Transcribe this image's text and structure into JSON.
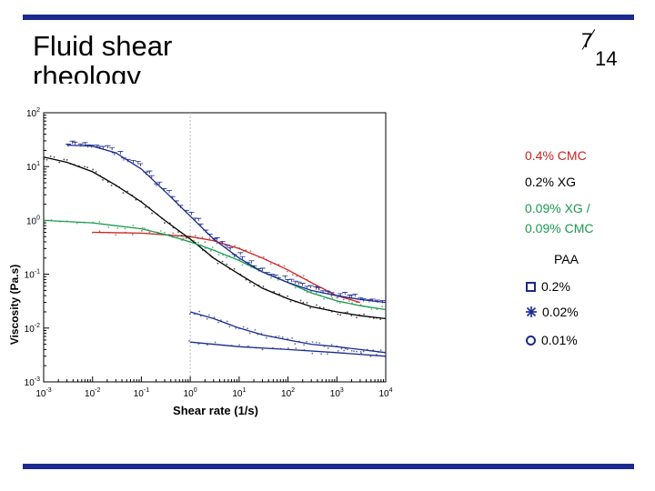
{
  "slide": {
    "title": "Fluid shear rheology",
    "page_num": "7",
    "page_den": "14"
  },
  "legend": {
    "cmc": {
      "label": "0.4% CMC",
      "color": "#cc2222"
    },
    "xg": {
      "label": "0.2% XG",
      "color": "#000000"
    },
    "mix1": "0.09% XG /",
    "mix2": "0.09% CMC",
    "mix_color": "#1a9a50",
    "paa_title": "PAA",
    "paa": [
      {
        "label": "0.2%",
        "marker": "square",
        "color": "#1b2a8c"
      },
      {
        "label": "0.02%",
        "marker": "asterisk",
        "color": "#1b2a8c"
      },
      {
        "label": "0.01%",
        "marker": "circle",
        "color": "#1b2a8c"
      }
    ]
  },
  "chart_data": {
    "type": "line",
    "xlabel": "Shear rate (1/s)",
    "ylabel": "Viscosity (Pa.s)",
    "x_scale": "log",
    "y_scale": "log",
    "xlim": [
      0.001,
      10000
    ],
    "ylim": [
      0.001,
      100
    ],
    "x_ticks": [
      "10-3",
      "10-2",
      "10-1",
      "100",
      "101",
      "102",
      "103",
      "104"
    ],
    "y_ticks": [
      "102",
      "101",
      "100",
      "10-1",
      "10-2",
      "10-3"
    ],
    "series": [
      {
        "name": "0.4% CMC",
        "color": "#cc2222",
        "x": [
          0.01,
          0.1,
          1,
          3,
          10,
          30,
          100,
          300,
          1000,
          3000
        ],
        "y": [
          0.6,
          0.58,
          0.5,
          0.42,
          0.3,
          0.2,
          0.12,
          0.07,
          0.04,
          0.03
        ]
      },
      {
        "name": "0.2% XG",
        "color": "#000000",
        "x": [
          0.001,
          0.003,
          0.01,
          0.03,
          0.1,
          0.3,
          1,
          3,
          10,
          30,
          100,
          300,
          1000,
          3000,
          10000
        ],
        "y": [
          15,
          12,
          8,
          4.5,
          2.2,
          1.0,
          0.45,
          0.2,
          0.1,
          0.055,
          0.035,
          0.025,
          0.02,
          0.017,
          0.015
        ]
      },
      {
        "name": "0.09% XG / 0.09% CMC",
        "color": "#1a9a50",
        "x": [
          0.001,
          0.01,
          0.1,
          0.3,
          1,
          3,
          10,
          30,
          100,
          300,
          1000,
          3000,
          10000
        ],
        "y": [
          1.0,
          0.9,
          0.7,
          0.55,
          0.4,
          0.28,
          0.18,
          0.11,
          0.07,
          0.045,
          0.032,
          0.026,
          0.022
        ]
      },
      {
        "name": "0.2%",
        "color": "#1b2a8c",
        "x": [
          0.003,
          0.01,
          0.03,
          0.1,
          0.3,
          1,
          3,
          10,
          30,
          100,
          300,
          1000,
          3000,
          10000
        ],
        "y": [
          25,
          24,
          18,
          9,
          3.5,
          1.2,
          0.45,
          0.2,
          0.11,
          0.07,
          0.05,
          0.04,
          0.034,
          0.03
        ]
      },
      {
        "name": "0.02%",
        "color": "#1b2a8c",
        "x": [
          1,
          3,
          10,
          30,
          100,
          300,
          1000,
          3000,
          10000
        ],
        "y": [
          0.02,
          0.015,
          0.01,
          0.0075,
          0.006,
          0.005,
          0.0045,
          0.004,
          0.0035
        ]
      },
      {
        "name": "0.01%",
        "color": "#1b2a8c",
        "x": [
          1,
          10,
          100,
          1000,
          10000
        ],
        "y": [
          0.0055,
          0.0045,
          0.004,
          0.0035,
          0.003
        ]
      }
    ]
  }
}
